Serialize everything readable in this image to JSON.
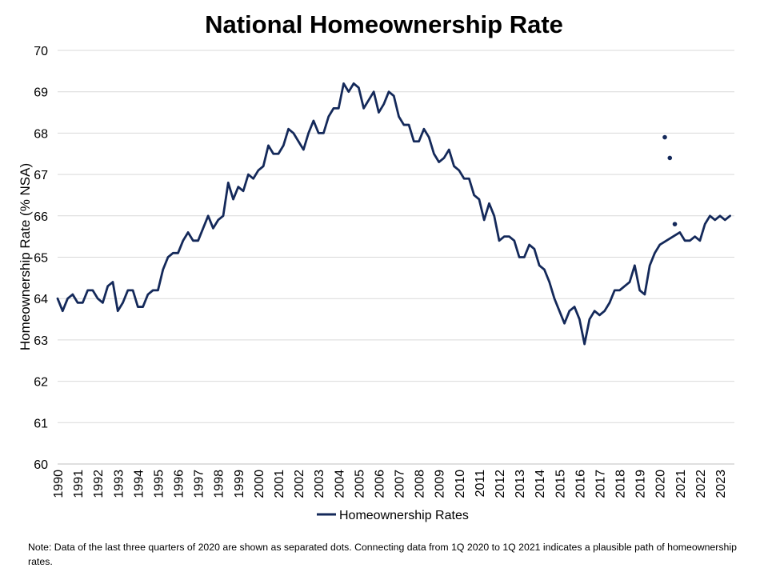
{
  "chart_data": {
    "type": "line",
    "title": "National Homeownership Rate",
    "xlabel": "",
    "ylabel": "Homeownership Rate (% NSA)",
    "ylim": [
      60,
      70
    ],
    "yticks": [
      60,
      61,
      62,
      63,
      64,
      65,
      66,
      67,
      68,
      69,
      70
    ],
    "xticks": [
      "1990",
      "1991",
      "1992",
      "1993",
      "1994",
      "1995",
      "1996",
      "1997",
      "1998",
      "1999",
      "2000",
      "2001",
      "2002",
      "2003",
      "2004",
      "2005",
      "2006",
      "2007",
      "2008",
      "2009",
      "2010",
      "2011",
      "2012",
      "2013",
      "2014",
      "2015",
      "2016",
      "2017",
      "2018",
      "2019",
      "2020",
      "2021",
      "2022",
      "2023"
    ],
    "grid": true,
    "legend": {
      "position": "bottom"
    },
    "colors": {
      "series": "#14295a",
      "grid": "#d9d9d9",
      "axis": "#bfbfbf"
    },
    "series": [
      {
        "name": "Homeownership Rates",
        "marker": "line",
        "x": [
          "1990-Q1",
          "1990-Q2",
          "1990-Q3",
          "1990-Q4",
          "1991-Q1",
          "1991-Q2",
          "1991-Q3",
          "1991-Q4",
          "1992-Q1",
          "1992-Q2",
          "1992-Q3",
          "1992-Q4",
          "1993-Q1",
          "1993-Q2",
          "1993-Q3",
          "1993-Q4",
          "1994-Q1",
          "1994-Q2",
          "1994-Q3",
          "1994-Q4",
          "1995-Q1",
          "1995-Q2",
          "1995-Q3",
          "1995-Q4",
          "1996-Q1",
          "1996-Q2",
          "1996-Q3",
          "1996-Q4",
          "1997-Q1",
          "1997-Q2",
          "1997-Q3",
          "1997-Q4",
          "1998-Q1",
          "1998-Q2",
          "1998-Q3",
          "1998-Q4",
          "1999-Q1",
          "1999-Q2",
          "1999-Q3",
          "1999-Q4",
          "2000-Q1",
          "2000-Q2",
          "2000-Q3",
          "2000-Q4",
          "2001-Q1",
          "2001-Q2",
          "2001-Q3",
          "2001-Q4",
          "2002-Q1",
          "2002-Q2",
          "2002-Q3",
          "2002-Q4",
          "2003-Q1",
          "2003-Q2",
          "2003-Q3",
          "2003-Q4",
          "2004-Q1",
          "2004-Q2",
          "2004-Q3",
          "2004-Q4",
          "2005-Q1",
          "2005-Q2",
          "2005-Q3",
          "2005-Q4",
          "2006-Q1",
          "2006-Q2",
          "2006-Q3",
          "2006-Q4",
          "2007-Q1",
          "2007-Q2",
          "2007-Q3",
          "2007-Q4",
          "2008-Q1",
          "2008-Q2",
          "2008-Q3",
          "2008-Q4",
          "2009-Q1",
          "2009-Q2",
          "2009-Q3",
          "2009-Q4",
          "2010-Q1",
          "2010-Q2",
          "2010-Q3",
          "2010-Q4",
          "2011-Q1",
          "2011-Q2",
          "2011-Q3",
          "2011-Q4",
          "2012-Q1",
          "2012-Q2",
          "2012-Q3",
          "2012-Q4",
          "2013-Q1",
          "2013-Q2",
          "2013-Q3",
          "2013-Q4",
          "2014-Q1",
          "2014-Q2",
          "2014-Q3",
          "2014-Q4",
          "2015-Q1",
          "2015-Q2",
          "2015-Q3",
          "2015-Q4",
          "2016-Q1",
          "2016-Q2",
          "2016-Q3",
          "2016-Q4",
          "2017-Q1",
          "2017-Q2",
          "2017-Q3",
          "2017-Q4",
          "2018-Q1",
          "2018-Q2",
          "2018-Q3",
          "2018-Q4",
          "2019-Q1",
          "2019-Q2",
          "2019-Q3",
          "2019-Q4",
          "2020-Q1",
          "2021-Q1",
          "2021-Q2",
          "2021-Q3",
          "2021-Q4",
          "2022-Q1",
          "2022-Q2",
          "2022-Q3",
          "2022-Q4",
          "2023-Q1",
          "2023-Q2",
          "2023-Q3"
        ],
        "values": [
          64.0,
          63.7,
          64.0,
          64.1,
          63.9,
          63.9,
          64.2,
          64.2,
          64.0,
          63.9,
          64.3,
          64.4,
          63.7,
          63.9,
          64.2,
          64.2,
          63.8,
          63.8,
          64.1,
          64.2,
          64.2,
          64.7,
          65.0,
          65.1,
          65.1,
          65.4,
          65.6,
          65.4,
          65.4,
          65.7,
          66.0,
          65.7,
          65.9,
          66.0,
          66.8,
          66.4,
          66.7,
          66.6,
          67.0,
          66.9,
          67.1,
          67.2,
          67.7,
          67.5,
          67.5,
          67.7,
          68.1,
          68.0,
          67.8,
          67.6,
          68.0,
          68.3,
          68.0,
          68.0,
          68.4,
          68.6,
          68.6,
          69.2,
          69.0,
          69.2,
          69.1,
          68.6,
          68.8,
          69.0,
          68.5,
          68.7,
          69.0,
          68.9,
          68.4,
          68.2,
          68.2,
          67.8,
          67.8,
          68.1,
          67.9,
          67.5,
          67.3,
          67.4,
          67.6,
          67.2,
          67.1,
          66.9,
          66.9,
          66.5,
          66.4,
          65.9,
          66.3,
          66.0,
          65.4,
          65.5,
          65.5,
          65.4,
          65.0,
          65.0,
          65.3,
          65.2,
          64.8,
          64.7,
          64.4,
          64.0,
          63.7,
          63.4,
          63.7,
          63.8,
          63.5,
          62.9,
          63.5,
          63.7,
          63.6,
          63.7,
          63.9,
          64.2,
          64.2,
          64.3,
          64.4,
          64.8,
          64.2,
          64.1,
          64.8,
          65.1,
          65.3,
          65.6,
          65.4,
          65.4,
          65.5,
          65.4,
          65.8,
          66.0,
          65.9,
          66.0,
          65.9,
          66.0
        ]
      },
      {
        "marker": "dot",
        "x": [
          "2020-Q2",
          "2020-Q3",
          "2020-Q4"
        ],
        "values": [
          67.9,
          67.4,
          65.8
        ]
      }
    ]
  },
  "note": "Note: Data of the last three quarters of 2020 are shown as separated dots. Connecting data from 1Q 2020 to 1Q 2021 indicates a plausible path of homeownership rates."
}
